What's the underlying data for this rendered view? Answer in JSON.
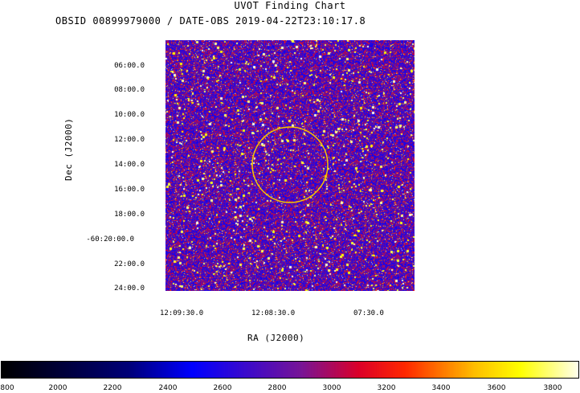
{
  "header": {
    "title": "UVOT Finding Chart",
    "subtitle": "OBSID 00899979000 / DATE-OBS 2019-04-22T23:10:17.8"
  },
  "axes": {
    "dec_label": "Dec (J2000)",
    "ra_label": "RA (J2000)",
    "dec_ticks": [
      "06:00.0",
      "08:00.0",
      "10:00.0",
      "12:00.0",
      "14:00.0",
      "16:00.0",
      "18:00.0",
      "-60:20:00.0",
      "22:00.0",
      "24:00.0"
    ],
    "ra_ticks": [
      "12:09:30.0",
      "12:08:30.0",
      "07:30.0"
    ]
  },
  "colorbar": {
    "ticks": [
      "800",
      "2000",
      "2200",
      "2400",
      "2600",
      "2800",
      "3000",
      "3200",
      "3400",
      "3600",
      "3800"
    ]
  },
  "colors": {
    "region_circle": "#f5c400",
    "background_field": "#2a1fc8"
  }
}
